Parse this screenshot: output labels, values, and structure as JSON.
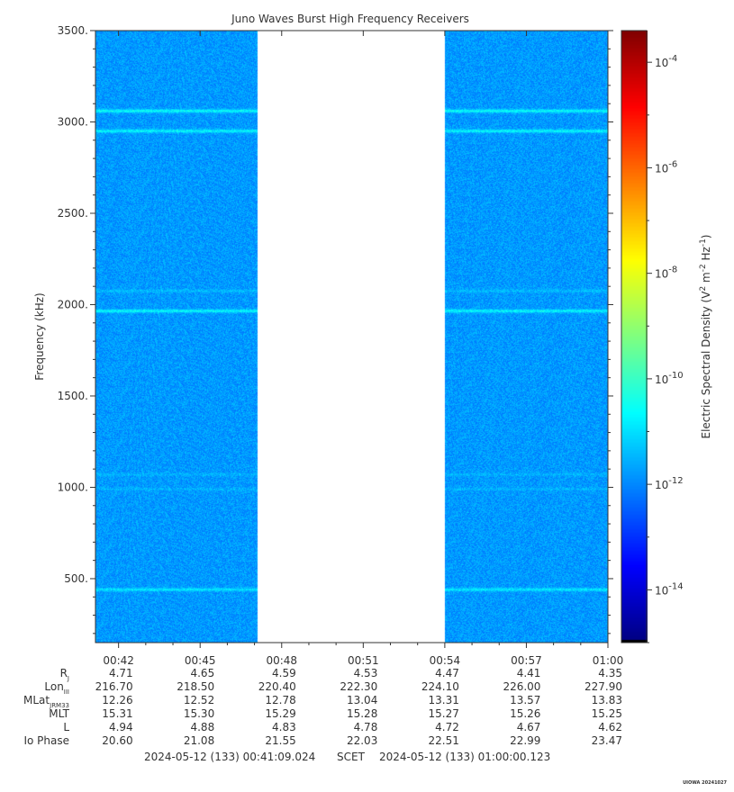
{
  "chart_data": {
    "type": "heatmap",
    "title": "Juno Waves Burst High Frequency Receivers",
    "ylabel": "Frequency (kHz)",
    "ylim": [
      150,
      3500
    ],
    "yticks": [
      {
        "value": 500,
        "label": "500."
      },
      {
        "value": 1000,
        "label": "1000."
      },
      {
        "value": 1500,
        "label": "1500."
      },
      {
        "value": 2000,
        "label": "2000."
      },
      {
        "value": 2500,
        "label": "2500."
      },
      {
        "value": 3000,
        "label": "3000."
      },
      {
        "value": 3500,
        "label": "3500."
      }
    ],
    "xlim_minutes": [
      41.15,
      60.0
    ],
    "xticks": [
      {
        "value": 42,
        "label": "00:42"
      },
      {
        "value": 45,
        "label": "00:45"
      },
      {
        "value": 48,
        "label": "00:48"
      },
      {
        "value": 51,
        "label": "00:51"
      },
      {
        "value": 54,
        "label": "00:54"
      },
      {
        "value": 57,
        "label": "00:57"
      },
      {
        "value": 60,
        "label": "01:00"
      }
    ],
    "data_gaps_minutes": [
      [
        47.1,
        54.0
      ]
    ],
    "background_log_density": -11.8,
    "emission_lines": [
      {
        "frequency": 3060,
        "log_density": -10.6
      },
      {
        "frequency": 2950,
        "log_density": -10.7
      },
      {
        "frequency": 2075,
        "log_density": -11.4
      },
      {
        "frequency": 1965,
        "log_density": -10.7
      },
      {
        "frequency": 1070,
        "log_density": -11.5
      },
      {
        "frequency": 990,
        "log_density": -11.5
      },
      {
        "frequency": 440,
        "log_density": -10.9
      }
    ],
    "colorbar": {
      "label_prefix": "Electric Spectral Density (V",
      "label_full": "Electric Spectral Density (V² m⁻² Hz⁻¹)",
      "log_range": [
        -15.0,
        -3.4
      ],
      "ticks": [
        {
          "exp": -4,
          "label": "10",
          "sup": "-4"
        },
        {
          "exp": -6,
          "label": "10",
          "sup": "-6"
        },
        {
          "exp": -8,
          "label": "10",
          "sup": "-8"
        },
        {
          "exp": -10,
          "label": "10",
          "sup": "-10"
        },
        {
          "exp": -12,
          "label": "10",
          "sup": "-12"
        },
        {
          "exp": -14,
          "label": "10",
          "sup": "-14"
        }
      ]
    },
    "ephemeris": {
      "rows": [
        {
          "label": "R",
          "sub": "J",
          "values": [
            "4.71",
            "4.65",
            "4.59",
            "4.53",
            "4.47",
            "4.41",
            "4.35"
          ]
        },
        {
          "label": "Lon",
          "sub": "III",
          "values": [
            "216.70",
            "218.50",
            "220.40",
            "222.30",
            "224.10",
            "226.00",
            "227.90"
          ]
        },
        {
          "label": "MLat",
          "sub": "JRM33",
          "values": [
            "12.26",
            "12.52",
            "12.78",
            "13.04",
            "13.31",
            "13.57",
            "13.83"
          ]
        },
        {
          "label": "MLT",
          "sub": "",
          "values": [
            "15.31",
            "15.30",
            "15.29",
            "15.28",
            "15.27",
            "15.26",
            "15.25"
          ]
        },
        {
          "label": "L",
          "sub": "",
          "values": [
            "4.94",
            "4.88",
            "4.83",
            "4.78",
            "4.72",
            "4.67",
            "4.62"
          ]
        },
        {
          "label": "Io Phase",
          "sub": "",
          "values": [
            "20.60",
            "21.08",
            "21.55",
            "22.03",
            "22.51",
            "22.99",
            "23.47"
          ]
        }
      ]
    },
    "time_range_start": "2024-05-12 (133) 00:41:09.024",
    "time_range_label": "SCET",
    "time_range_end": "2024-05-12 (133) 01:00:00.123",
    "credit": "UIOWA 20241027"
  }
}
